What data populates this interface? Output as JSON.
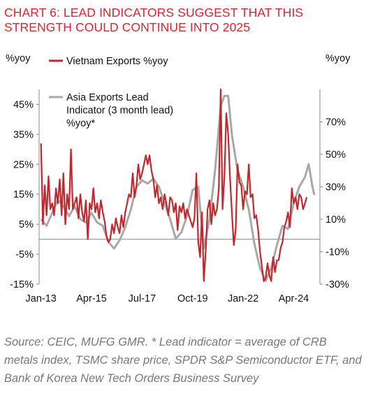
{
  "header": {
    "title": "CHART 6: LEAD INDICATORS SUGGEST THAT THIS STRENGTH COULD CONTINUE INTO 2025"
  },
  "footer": {
    "source": "Source: CEIC, MUFG GMR. * Lead indicator = average of CRB metals index, TSMC share price, SPDR S&P Semiconductor ETF, and Bank of Korea New Tech Orders Business Survey"
  },
  "colors": {
    "vietnam": "#c0282d",
    "asia": "#a8a8a8",
    "axis": "#888888"
  },
  "chart_data": {
    "type": "line",
    "ylabel_left": "%yoy",
    "ylabel_right": "%yoy",
    "x_ticks": [
      "Jan-13",
      "Apr-15",
      "Jul-17",
      "Oct-19",
      "Jan-22",
      "Apr-24"
    ],
    "x_range": [
      "2012-12",
      "2025-06"
    ],
    "y_left": {
      "range": [
        -15,
        50
      ],
      "ticks": [
        -15,
        -5,
        5,
        15,
        25,
        35,
        45
      ],
      "tick_labels": [
        "-15%",
        "-5%",
        "5%",
        "15%",
        "25%",
        "35%",
        "45%"
      ]
    },
    "y_right": {
      "range": [
        -30,
        90
      ],
      "ticks": [
        -30,
        -10,
        10,
        30,
        50,
        70
      ],
      "tick_labels": [
        "-30%",
        "-10%",
        "10%",
        "30%",
        "50%",
        "70%"
      ]
    },
    "series": [
      {
        "name": "Vietnam Exports %yoy",
        "axis": "left",
        "points": [
          [
            "2013-01",
            32
          ],
          [
            "2013-02",
            5
          ],
          [
            "2013-03",
            18
          ],
          [
            "2013-04",
            8
          ],
          [
            "2013-05",
            21
          ],
          [
            "2013-06",
            10
          ],
          [
            "2013-07",
            12
          ],
          [
            "2013-08",
            8
          ],
          [
            "2013-09",
            17
          ],
          [
            "2013-10",
            12
          ],
          [
            "2013-11",
            20
          ],
          [
            "2013-12",
            8
          ],
          [
            "2014-01",
            22
          ],
          [
            "2014-02",
            5
          ],
          [
            "2014-03",
            15
          ],
          [
            "2014-04",
            10
          ],
          [
            "2014-05",
            30
          ],
          [
            "2014-06",
            10
          ],
          [
            "2014-07",
            12
          ],
          [
            "2014-08",
            14
          ],
          [
            "2014-09",
            7
          ],
          [
            "2014-10",
            15
          ],
          [
            "2014-11",
            9
          ],
          [
            "2014-12",
            6
          ],
          [
            "2015-01",
            13
          ],
          [
            "2015-02",
            0
          ],
          [
            "2015-03",
            12
          ],
          [
            "2015-04",
            10
          ],
          [
            "2015-05",
            17
          ],
          [
            "2015-06",
            9
          ],
          [
            "2015-07",
            12
          ],
          [
            "2015-08",
            7
          ],
          [
            "2015-09",
            13
          ],
          [
            "2015-10",
            9
          ],
          [
            "2015-11",
            6
          ],
          [
            "2015-12",
            1
          ],
          [
            "2016-01",
            -1
          ],
          [
            "2016-02",
            0
          ],
          [
            "2016-03",
            5
          ],
          [
            "2016-04",
            2
          ],
          [
            "2016-05",
            7
          ],
          [
            "2016-06",
            4
          ],
          [
            "2016-07",
            2
          ],
          [
            "2016-08",
            8
          ],
          [
            "2016-09",
            4
          ],
          [
            "2016-10",
            9
          ],
          [
            "2016-11",
            12
          ],
          [
            "2016-12",
            15
          ],
          [
            "2017-01",
            14
          ],
          [
            "2017-02",
            22
          ],
          [
            "2017-03",
            14
          ],
          [
            "2017-04",
            18
          ],
          [
            "2017-05",
            25
          ],
          [
            "2017-06",
            20
          ],
          [
            "2017-07",
            22
          ],
          [
            "2017-08",
            25
          ],
          [
            "2017-09",
            28
          ],
          [
            "2017-10",
            25
          ],
          [
            "2017-11",
            28
          ],
          [
            "2017-12",
            23
          ],
          [
            "2018-01",
            20
          ],
          [
            "2018-02",
            14
          ],
          [
            "2018-03",
            18
          ],
          [
            "2018-04",
            12
          ],
          [
            "2018-05",
            14
          ],
          [
            "2018-06",
            10
          ],
          [
            "2018-07",
            15
          ],
          [
            "2018-08",
            12
          ],
          [
            "2018-09",
            8
          ],
          [
            "2018-10",
            14
          ],
          [
            "2018-11",
            13
          ],
          [
            "2018-12",
            9
          ],
          [
            "2019-01",
            12
          ],
          [
            "2019-02",
            3
          ],
          [
            "2019-03",
            11
          ],
          [
            "2019-04",
            9
          ],
          [
            "2019-05",
            12
          ],
          [
            "2019-06",
            7
          ],
          [
            "2019-07",
            10
          ],
          [
            "2019-08",
            8
          ],
          [
            "2019-09",
            6
          ],
          [
            "2019-10",
            4
          ],
          [
            "2019-11",
            7
          ],
          [
            "2019-12",
            22
          ],
          [
            "2020-01",
            -1
          ],
          [
            "2020-02",
            -6
          ],
          [
            "2020-03",
            9
          ],
          [
            "2020-04",
            -14
          ],
          [
            "2020-05",
            -4
          ],
          [
            "2020-06",
            10
          ],
          [
            "2020-07",
            13
          ],
          [
            "2020-08",
            5
          ],
          [
            "2020-09",
            12
          ],
          [
            "2020-10",
            8
          ],
          [
            "2020-11",
            10
          ],
          [
            "2020-12",
            17
          ],
          [
            "2021-01",
            50
          ],
          [
            "2021-02",
            10
          ],
          [
            "2021-03",
            21
          ],
          [
            "2021-04",
            42
          ],
          [
            "2021-05",
            35
          ],
          [
            "2021-06",
            20
          ],
          [
            "2021-07",
            9
          ],
          [
            "2021-08",
            -2
          ],
          [
            "2021-09",
            3
          ],
          [
            "2021-10",
            25
          ],
          [
            "2021-11",
            19
          ],
          [
            "2021-12",
            18
          ],
          [
            "2022-01",
            10
          ],
          [
            "2022-02",
            16
          ],
          [
            "2022-03",
            15
          ],
          [
            "2022-04",
            25
          ],
          [
            "2022-05",
            14
          ],
          [
            "2022-06",
            15
          ],
          [
            "2022-07",
            7
          ],
          [
            "2022-08",
            8
          ],
          [
            "2022-09",
            3
          ],
          [
            "2022-10",
            -4
          ],
          [
            "2022-11",
            -9
          ],
          [
            "2022-12",
            -14
          ],
          [
            "2023-01",
            -13
          ],
          [
            "2023-02",
            -8
          ],
          [
            "2023-03",
            -12
          ],
          [
            "2023-04",
            -14
          ],
          [
            "2023-05",
            -6
          ],
          [
            "2023-06",
            -11
          ],
          [
            "2023-07",
            -7
          ],
          [
            "2023-08",
            -7
          ],
          [
            "2023-09",
            -3
          ],
          [
            "2023-10",
            -1
          ],
          [
            "2023-11",
            4
          ],
          [
            "2023-12",
            6
          ],
          [
            "2024-01",
            9
          ],
          [
            "2024-02",
            4
          ],
          [
            "2024-03",
            17
          ],
          [
            "2024-04",
            12
          ],
          [
            "2024-05",
            14
          ],
          [
            "2024-06",
            10
          ],
          [
            "2024-07",
            15
          ],
          [
            "2024-08",
            14
          ],
          [
            "2024-09",
            10
          ],
          [
            "2024-10",
            12
          ],
          [
            "2024-11",
            14
          ]
        ]
      },
      {
        "name": "Asia Exports Lead Indicator (3 month lead) %yoy*",
        "axis": "right",
        "points": [
          [
            "2013-01",
            10
          ],
          [
            "2013-04",
            6
          ],
          [
            "2013-07",
            14
          ],
          [
            "2013-10",
            22
          ],
          [
            "2014-01",
            18
          ],
          [
            "2014-04",
            12
          ],
          [
            "2014-07",
            18
          ],
          [
            "2014-10",
            10
          ],
          [
            "2015-01",
            8
          ],
          [
            "2015-04",
            14
          ],
          [
            "2015-07",
            8
          ],
          [
            "2015-10",
            6
          ],
          [
            "2016-01",
            -4
          ],
          [
            "2016-04",
            -8
          ],
          [
            "2016-07",
            -3
          ],
          [
            "2016-10",
            5
          ],
          [
            "2017-01",
            16
          ],
          [
            "2017-04",
            30
          ],
          [
            "2017-07",
            34
          ],
          [
            "2017-10",
            32
          ],
          [
            "2018-01",
            35
          ],
          [
            "2018-04",
            30
          ],
          [
            "2018-07",
            20
          ],
          [
            "2018-10",
            10
          ],
          [
            "2019-01",
            -2
          ],
          [
            "2019-04",
            2
          ],
          [
            "2019-07",
            12
          ],
          [
            "2019-10",
            28
          ],
          [
            "2020-01",
            30
          ],
          [
            "2020-04",
            -8
          ],
          [
            "2020-07",
            10
          ],
          [
            "2020-10",
            40
          ],
          [
            "2021-01",
            80
          ],
          [
            "2021-03",
            86
          ],
          [
            "2021-05",
            86
          ],
          [
            "2021-07",
            62
          ],
          [
            "2021-10",
            40
          ],
          [
            "2022-01",
            30
          ],
          [
            "2022-04",
            16
          ],
          [
            "2022-07",
            -5
          ],
          [
            "2022-10",
            -20
          ],
          [
            "2023-01",
            -28
          ],
          [
            "2023-04",
            -20
          ],
          [
            "2023-07",
            -6
          ],
          [
            "2023-10",
            6
          ],
          [
            "2024-01",
            4
          ],
          [
            "2024-04",
            20
          ],
          [
            "2024-07",
            30
          ],
          [
            "2024-10",
            36
          ],
          [
            "2024-12",
            44
          ],
          [
            "2025-02",
            30
          ],
          [
            "2025-03",
            25
          ]
        ]
      }
    ]
  }
}
